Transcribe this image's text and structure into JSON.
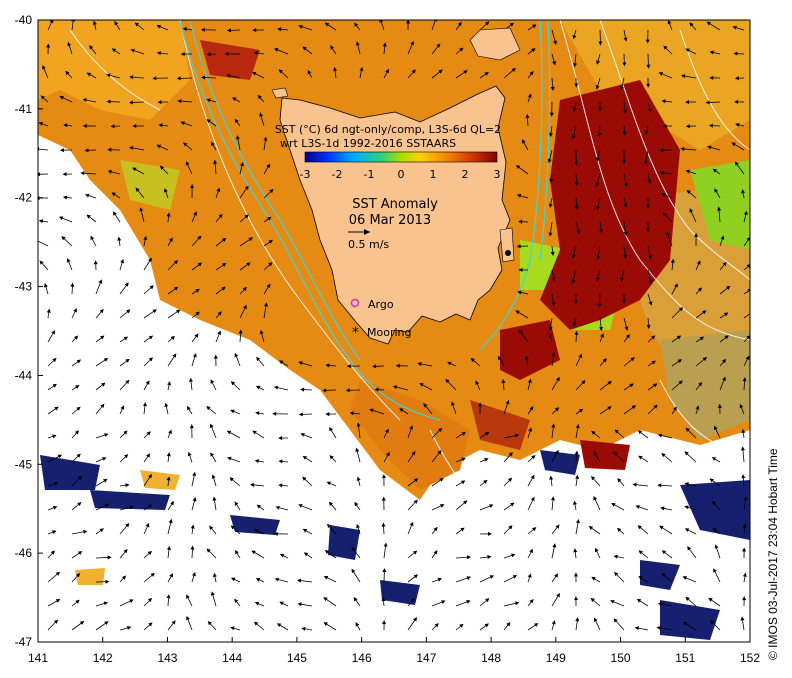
{
  "map": {
    "type": "sst-anomaly-map",
    "region": "Tasmania",
    "x_axis": {
      "ticks": [
        "141",
        "142",
        "143",
        "144",
        "145",
        "146",
        "147",
        "148",
        "149",
        "150",
        "151",
        "152"
      ],
      "range": [
        141,
        152
      ]
    },
    "y_axis": {
      "ticks": [
        "-40",
        "-41",
        "-42",
        "-43",
        "-44",
        "-45",
        "-46",
        "-47"
      ],
      "range": [
        -47,
        -40
      ]
    }
  },
  "legend": {
    "line1": "SST (°C) 6d ngt-only/comp, L3S-6d QL=2",
    "line2": "wrt L3S-1d 1992-2016 SSTAARS",
    "colorbar_ticks": [
      "-3",
      "-2",
      "-1",
      "0",
      "1",
      "2",
      "3"
    ],
    "colorbar_range": [
      -3,
      3
    ]
  },
  "title": {
    "line1": "SST Anomaly",
    "line2": "06 Mar 2013"
  },
  "scale": {
    "label": "0.5 m/s"
  },
  "markers": {
    "argo": "Argo",
    "mooring": "Mooring"
  },
  "credit": "© IMOS 03-Jul-2017 23:04 Hobart Time",
  "colors": {
    "land": "#f9c38f",
    "anomaly_high": "#9a0b05",
    "anomaly_mid": "#e07c10",
    "anomaly_low": "#16206e",
    "current_line": "#3fd6d6",
    "argo_marker": "#cc33cc"
  }
}
